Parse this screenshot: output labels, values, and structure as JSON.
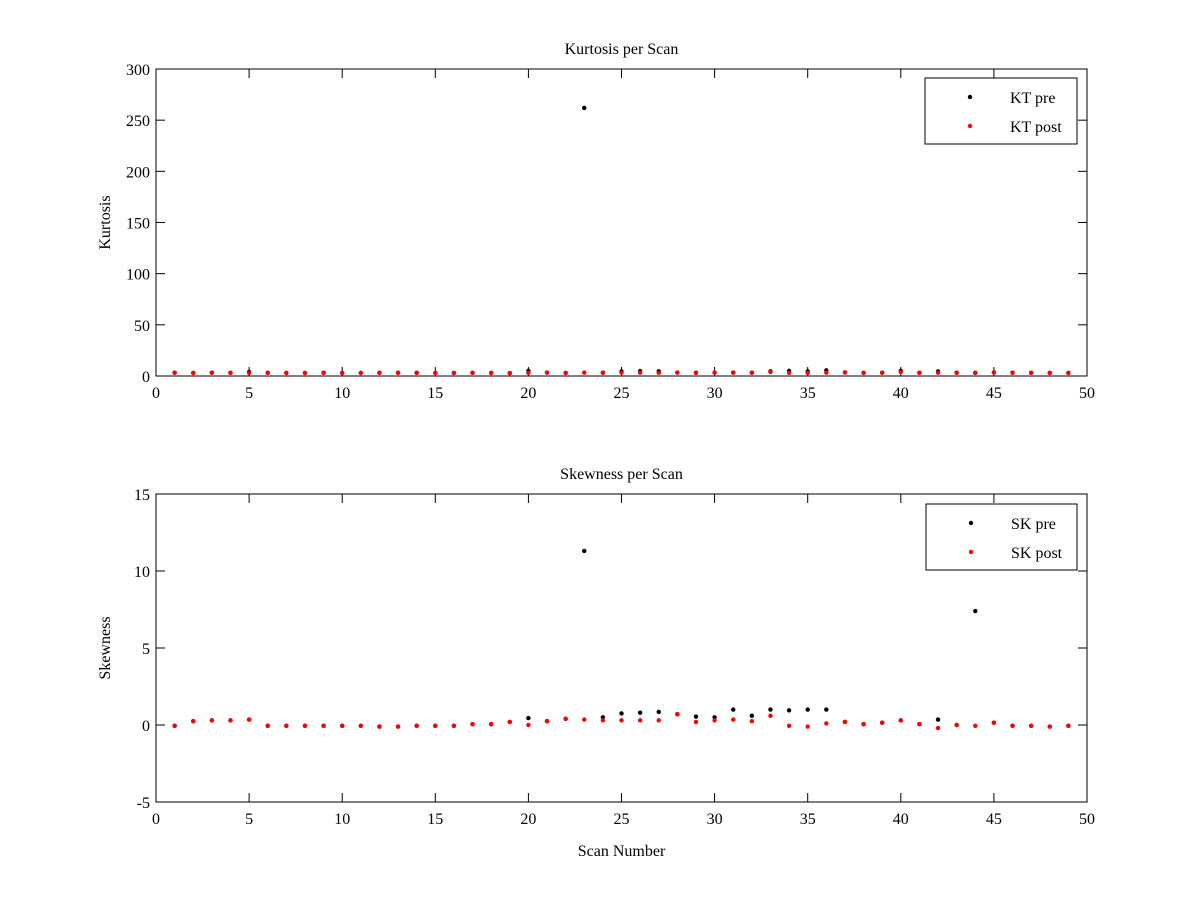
{
  "chart_data": [
    {
      "type": "scatter",
      "title": "Kurtosis per Scan",
      "xlabel": "",
      "ylabel": "Kurtosis",
      "xlim": [
        0,
        50
      ],
      "ylim": [
        0,
        300
      ],
      "xticks": [
        0,
        5,
        10,
        15,
        20,
        25,
        30,
        35,
        40,
        45,
        50
      ],
      "yticks": [
        0,
        50,
        100,
        150,
        200,
        250,
        300
      ],
      "grid": false,
      "legend_position": "top-right",
      "series": [
        {
          "name": "KT pre",
          "color": "#000000",
          "x": [
            1,
            2,
            3,
            4,
            5,
            6,
            7,
            8,
            9,
            10,
            11,
            12,
            13,
            14,
            15,
            16,
            17,
            18,
            19,
            20,
            21,
            22,
            23,
            24,
            25,
            26,
            27,
            28,
            29,
            30,
            31,
            32,
            33,
            34,
            35,
            36,
            37,
            38,
            39,
            40,
            41,
            42,
            43,
            44,
            45,
            46,
            47,
            48,
            49
          ],
          "y": [
            3.2,
            3.0,
            3.2,
            3.1,
            4.0,
            3.1,
            3.0,
            3.0,
            3.1,
            3.0,
            3.0,
            3.1,
            3.1,
            3.1,
            3.0,
            3.0,
            3.1,
            3.0,
            2.9,
            5.0,
            3.4,
            3.0,
            262,
            3.2,
            4.5,
            4.8,
            4.6,
            3.4,
            3.1,
            3.3,
            3.4,
            3.2,
            4.6,
            5.0,
            4.5,
            5.5,
            3.5,
            3.1,
            3.2,
            5.0,
            3.1,
            4.5,
            3.2,
            3.1,
            3.5,
            3.2,
            3.1,
            3.0,
            3.0
          ]
        },
        {
          "name": "KT post",
          "color": "#ff0000",
          "x": [
            1,
            2,
            3,
            4,
            5,
            6,
            7,
            8,
            9,
            10,
            11,
            12,
            13,
            14,
            15,
            16,
            17,
            18,
            19,
            20,
            21,
            22,
            23,
            24,
            25,
            26,
            27,
            28,
            29,
            30,
            31,
            32,
            33,
            34,
            35,
            36,
            37,
            38,
            39,
            40,
            41,
            42,
            43,
            44,
            45,
            46,
            47,
            48,
            49
          ],
          "y": [
            3.2,
            3.0,
            3.2,
            3.1,
            3.0,
            3.1,
            3.0,
            3.0,
            3.1,
            3.0,
            3.0,
            3.1,
            3.1,
            3.1,
            3.0,
            3.0,
            3.1,
            3.0,
            2.9,
            3.1,
            3.4,
            3.0,
            3.3,
            3.2,
            3.4,
            3.3,
            3.2,
            3.4,
            3.1,
            3.3,
            3.4,
            3.2,
            4.0,
            3.1,
            3.0,
            3.3,
            3.5,
            3.1,
            3.2,
            4.0,
            3.1,
            3.2,
            3.2,
            3.1,
            3.5,
            3.2,
            3.1,
            3.0,
            3.0
          ]
        }
      ]
    },
    {
      "type": "scatter",
      "title": "Skewness per Scan",
      "xlabel": "Scan Number",
      "ylabel": "Skewness",
      "xlim": [
        0,
        50
      ],
      "ylim": [
        -5,
        15
      ],
      "xticks": [
        0,
        5,
        10,
        15,
        20,
        25,
        30,
        35,
        40,
        45,
        50
      ],
      "yticks": [
        -5,
        0,
        5,
        10,
        15
      ],
      "grid": false,
      "legend_position": "top-right",
      "series": [
        {
          "name": "SK pre",
          "color": "#000000",
          "x": [
            1,
            2,
            3,
            4,
            5,
            6,
            7,
            8,
            9,
            10,
            11,
            12,
            13,
            14,
            15,
            16,
            17,
            18,
            19,
            20,
            21,
            22,
            23,
            24,
            25,
            26,
            27,
            28,
            29,
            30,
            31,
            32,
            33,
            34,
            35,
            36,
            37,
            38,
            39,
            40,
            41,
            42,
            43,
            44,
            45,
            46,
            47,
            48,
            49
          ],
          "y": [
            -0.05,
            0.25,
            0.3,
            0.3,
            0.35,
            -0.05,
            -0.05,
            -0.05,
            -0.05,
            -0.05,
            -0.05,
            -0.1,
            -0.1,
            -0.05,
            -0.05,
            -0.05,
            0.05,
            0.05,
            0.2,
            0.45,
            0.25,
            0.4,
            11.3,
            0.5,
            0.75,
            0.8,
            0.85,
            0.7,
            0.55,
            0.5,
            1.0,
            0.6,
            1.0,
            0.95,
            1.0,
            1.0,
            0.2,
            0.05,
            0.15,
            0.3,
            0.05,
            0.35,
            0.0,
            7.4,
            0.15,
            -0.05,
            -0.05,
            -0.1,
            -0.05
          ]
        },
        {
          "name": "SK post",
          "color": "#ff0000",
          "x": [
            1,
            2,
            3,
            4,
            5,
            6,
            7,
            8,
            9,
            10,
            11,
            12,
            13,
            14,
            15,
            16,
            17,
            18,
            19,
            20,
            21,
            22,
            23,
            24,
            25,
            26,
            27,
            28,
            29,
            30,
            31,
            32,
            33,
            34,
            35,
            36,
            37,
            38,
            39,
            40,
            41,
            42,
            43,
            44,
            45,
            46,
            47,
            48,
            49
          ],
          "y": [
            -0.05,
            0.25,
            0.3,
            0.3,
            0.35,
            -0.05,
            -0.05,
            -0.05,
            -0.05,
            -0.05,
            -0.05,
            -0.1,
            -0.1,
            -0.05,
            -0.05,
            -0.05,
            0.05,
            0.05,
            0.2,
            0.0,
            0.25,
            0.4,
            0.35,
            0.3,
            0.3,
            0.3,
            0.3,
            0.7,
            0.2,
            0.3,
            0.35,
            0.25,
            0.6,
            -0.05,
            -0.1,
            0.1,
            0.2,
            0.05,
            0.15,
            0.3,
            0.05,
            -0.2,
            0.0,
            -0.05,
            0.15,
            -0.05,
            -0.05,
            -0.1,
            -0.05
          ]
        }
      ]
    }
  ]
}
